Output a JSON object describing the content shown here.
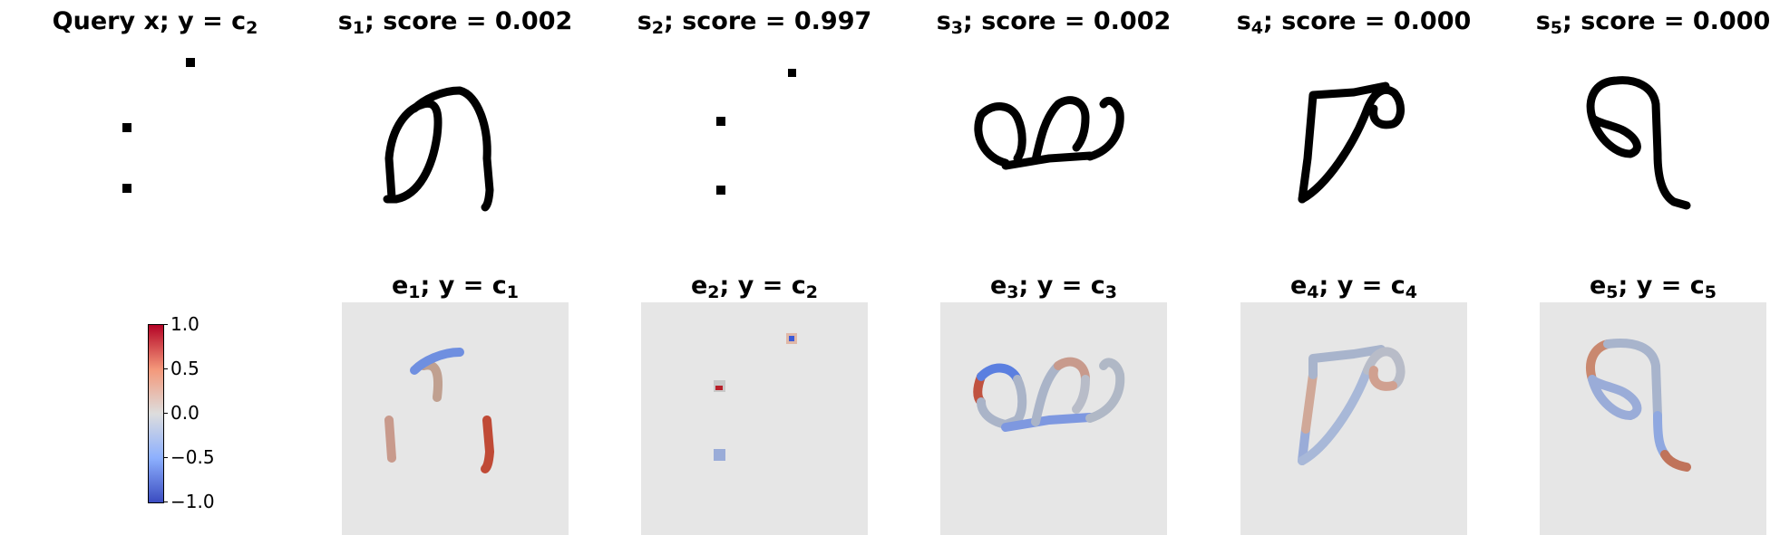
{
  "top_row": [
    {
      "label": "Query x; y",
      "sym": "c",
      "sub": "2",
      "pre": "",
      "presub": ""
    },
    {
      "label": "; score = 0.002",
      "pre": "s",
      "presub": "1"
    },
    {
      "label": "; score = 0.997",
      "pre": "s",
      "presub": "2"
    },
    {
      "label": "; score = 0.002",
      "pre": "s",
      "presub": "3"
    },
    {
      "label": "; score = 0.000",
      "pre": "s",
      "presub": "4"
    },
    {
      "label": "; score = 0.000",
      "pre": "s",
      "presub": "5"
    }
  ],
  "bottom_row": [
    {
      "pre": "e",
      "presub": "1",
      "mid": "; y = ",
      "sym": "c",
      "sub": "1"
    },
    {
      "pre": "e",
      "presub": "2",
      "mid": "; y = ",
      "sym": "c",
      "sub": "2"
    },
    {
      "pre": "e",
      "presub": "3",
      "mid": "; y = ",
      "sym": "c",
      "sub": "3"
    },
    {
      "pre": "e",
      "presub": "4",
      "mid": "; y = ",
      "sym": "c",
      "sub": "4"
    },
    {
      "pre": "e",
      "presub": "5",
      "mid": "; y = ",
      "sym": "c",
      "sub": "5"
    }
  ],
  "query_eq": " = ",
  "colorbar": {
    "ticks": [
      "1.0",
      "0.5",
      "0.0",
      "−0.5",
      "−1.0"
    ],
    "colormap": "coolwarm",
    "range": [
      -1.0,
      1.0
    ]
  },
  "colors": {
    "panel_bg": "#e6e6e6",
    "stroke": "#000000",
    "red": "#c0523f",
    "blue": "#5b7fe0",
    "grey": "#aab4c8"
  }
}
